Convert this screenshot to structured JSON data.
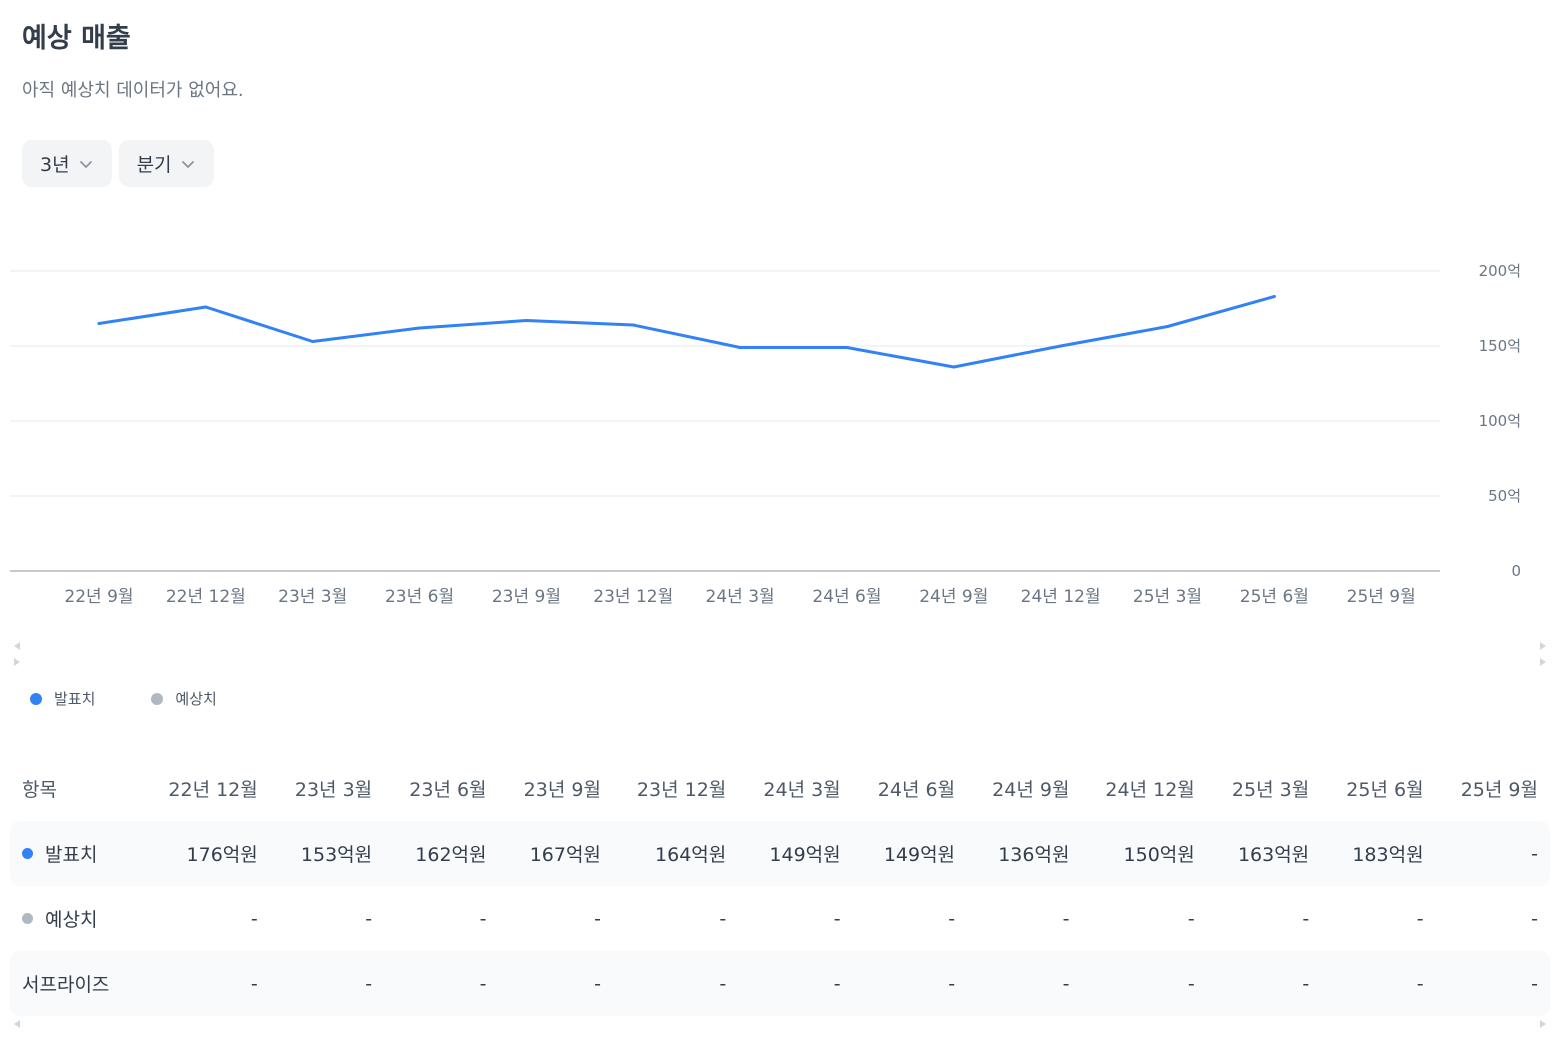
{
  "header": {
    "title": "예상 매출",
    "subtitle": "아직 예상치 데이터가 없어요."
  },
  "filters": [
    {
      "label": "3년",
      "icon": "chevron-down-icon"
    },
    {
      "label": "분기",
      "icon": "chevron-down-icon"
    }
  ],
  "colors": {
    "actual": "#3182f6",
    "estimate": "#b0b8c1",
    "grid": "#e5e8eb",
    "axis": "#9ea7b3"
  },
  "chart_data": {
    "type": "line",
    "categories": [
      "22년 9월",
      "22년 12월",
      "23년 3월",
      "23년 6월",
      "23년 9월",
      "23년 12월",
      "24년 3월",
      "24년 6월",
      "24년 9월",
      "24년 12월",
      "25년 3월",
      "25년 6월",
      "25년 9월"
    ],
    "series": [
      {
        "name": "발표치",
        "values": [
          165,
          176,
          153,
          162,
          167,
          164,
          149,
          149,
          136,
          150,
          163,
          183,
          null
        ]
      },
      {
        "name": "예상치",
        "values": [
          null,
          null,
          null,
          null,
          null,
          null,
          null,
          null,
          null,
          null,
          null,
          null,
          null
        ]
      }
    ],
    "y_ticks": [
      "200억",
      "150억",
      "100억",
      "50억",
      "0"
    ],
    "ylim": [
      0,
      200
    ],
    "grid": true,
    "y_axis_position": "right",
    "legend_position": "bottom-left"
  },
  "legend": [
    {
      "label": "발표치"
    },
    {
      "label": "예상치"
    }
  ],
  "table": {
    "header_label": "항목",
    "columns": [
      "22년 12월",
      "23년 3월",
      "23년 6월",
      "23년 9월",
      "23년 12월",
      "24년 3월",
      "24년 6월",
      "24년 9월",
      "24년 12월",
      "25년 3월",
      "25년 6월",
      "25년 9월"
    ],
    "rows": [
      {
        "label": "발표치",
        "values": [
          "176억원",
          "153억원",
          "162억원",
          "167억원",
          "164억원",
          "149억원",
          "149억원",
          "136억원",
          "150억원",
          "163억원",
          "183억원",
          "-"
        ]
      },
      {
        "label": "예상치",
        "values": [
          "-",
          "-",
          "-",
          "-",
          "-",
          "-",
          "-",
          "-",
          "-",
          "-",
          "-",
          "-"
        ]
      },
      {
        "label": "서프라이즈",
        "values": [
          "-",
          "-",
          "-",
          "-",
          "-",
          "-",
          "-",
          "-",
          "-",
          "-",
          "-",
          "-"
        ]
      }
    ]
  }
}
